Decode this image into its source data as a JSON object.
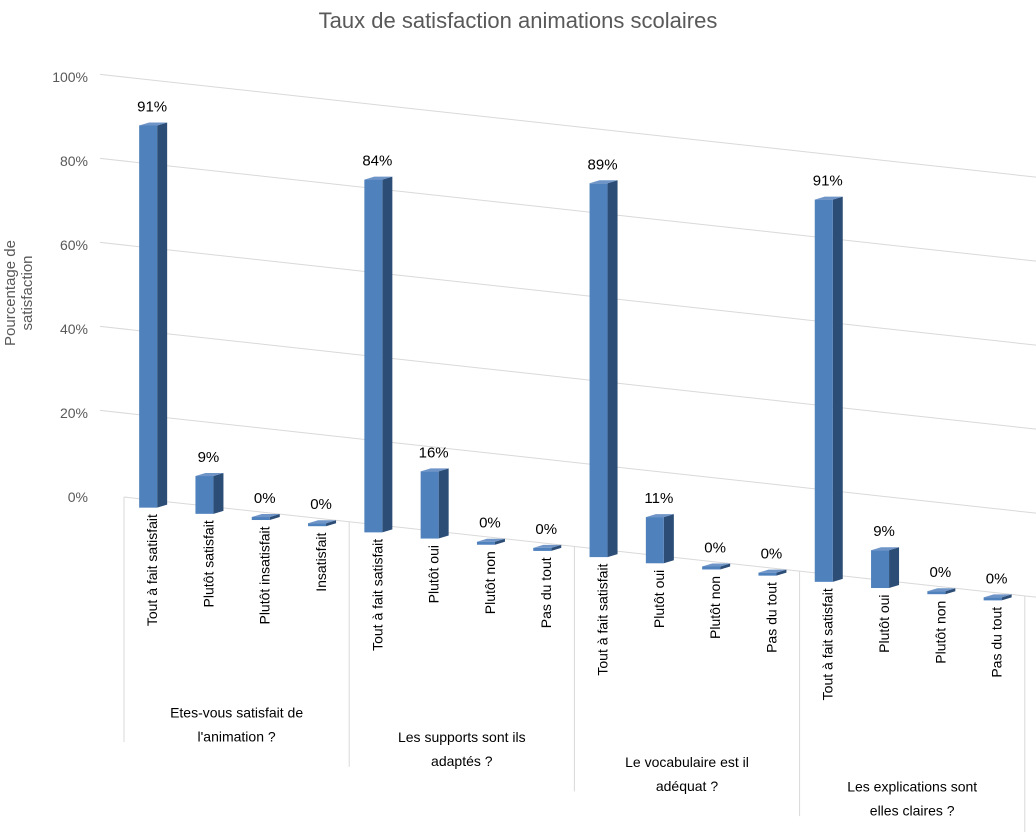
{
  "chart_data": {
    "type": "bar",
    "title": "Taux de satisfaction animations scolaires",
    "ylabel": "Pourcentage de satisfaction",
    "xlabel": "",
    "ylim": [
      0,
      100
    ],
    "yticks": [
      "0%",
      "20%",
      "40%",
      "60%",
      "80%",
      "100%"
    ],
    "grid": true,
    "legend": "none",
    "bar_color": "#4f81bd",
    "groups": [
      {
        "label": "Etes-vous satisfait de l'animation ?",
        "categories": [
          "Tout à fait satisfait",
          "Plutôt satisfait",
          "Plutôt insatisfait",
          "Insatisfait"
        ],
        "values": [
          91,
          9,
          0,
          0
        ],
        "data_labels": [
          "91%",
          "9%",
          "0%",
          "0%"
        ]
      },
      {
        "label": "Les supports sont ils adaptés ?",
        "categories": [
          "Tout à fait satisfait",
          "Plutôt oui",
          "Plutôt non",
          "Pas du tout"
        ],
        "values": [
          84,
          16,
          0,
          0
        ],
        "data_labels": [
          "84%",
          "16%",
          "0%",
          "0%"
        ]
      },
      {
        "label": "Le vocabulaire est il adéquat ?",
        "categories": [
          "Tout à fait satisfait",
          "Plutôt oui",
          "Plutôt non",
          "Pas du tout"
        ],
        "values": [
          89,
          11,
          0,
          0
        ],
        "data_labels": [
          "89%",
          "11%",
          "0%",
          "0%"
        ]
      },
      {
        "label": "Les explications sont elles claires ?",
        "categories": [
          "Tout à fait satisfait",
          "Plutôt oui",
          "Plutôt non",
          "Pas du tout"
        ],
        "values": [
          91,
          9,
          0,
          0
        ],
        "data_labels": [
          "91%",
          "9%",
          "0%",
          "0%"
        ]
      }
    ]
  }
}
